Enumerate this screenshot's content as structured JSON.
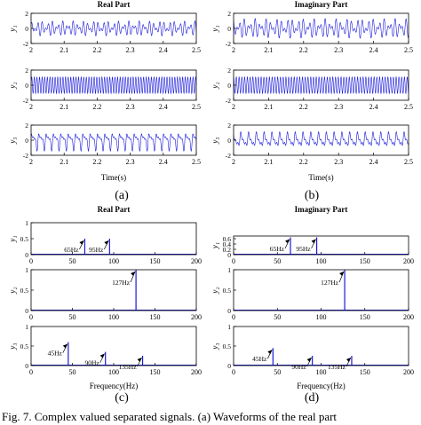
{
  "colors": {
    "trace": "#1a1adb",
    "axis": "#000000",
    "stem": "#1a1adb"
  },
  "subfig_labels": [
    "(a)",
    "(b)",
    "(c)",
    "(d)"
  ],
  "caption": "Fig. 7.   Complex valued separated signals. (a) Waveforms of the real part",
  "chart_data": [
    {
      "id": "a",
      "type": "line",
      "title": "Real Part",
      "xlabel": "Time(s)",
      "x_ticks": [
        "2",
        "2.1",
        "2.2",
        "2.3",
        "2.4",
        "2.5"
      ],
      "xlim": [
        2,
        2.5
      ],
      "panels": [
        {
          "ylabel": "y₁",
          "ylim": [
            -2,
            2
          ],
          "y_ticks": [
            "2",
            "0",
            "-2"
          ],
          "freqs_hz": [
            65,
            95
          ],
          "amps": [
            0.5,
            0.5
          ]
        },
        {
          "ylabel": "y₂",
          "ylim": [
            -2,
            2
          ],
          "y_ticks": [
            "2",
            "0",
            "-2"
          ],
          "freqs_hz": [
            127
          ],
          "amps": [
            1.1
          ]
        },
        {
          "ylabel": "y₃",
          "ylim": [
            -2,
            2
          ],
          "y_ticks": [
            "2",
            "0",
            "-2"
          ],
          "freqs_hz": [
            45,
            90,
            135
          ],
          "amps": [
            0.7,
            0.5,
            0.3
          ]
        }
      ]
    },
    {
      "id": "b",
      "type": "line",
      "title": "Imaginary Part",
      "xlabel": "Time(s)",
      "x_ticks": [
        "2",
        "2.1",
        "2.2",
        "2.3",
        "2.4",
        "2.5"
      ],
      "xlim": [
        2,
        2.5
      ],
      "panels": [
        {
          "ylabel": "y₁",
          "ylim": [
            -2,
            2
          ],
          "y_ticks": [
            "2",
            "0",
            "-2"
          ],
          "freqs_hz": [
            65,
            95
          ],
          "amps": [
            0.65,
            0.65
          ]
        },
        {
          "ylabel": "y₂",
          "ylim": [
            -2,
            2
          ],
          "y_ticks": [
            "2",
            "0",
            "-2"
          ],
          "freqs_hz": [
            127
          ],
          "amps": [
            1.1
          ]
        },
        {
          "ylabel": "y₃",
          "ylim": [
            -2,
            2
          ],
          "y_ticks": [
            "2",
            "0",
            "-2"
          ],
          "freqs_hz": [
            45,
            90,
            135
          ],
          "amps": [
            0.6,
            0.3,
            0.3
          ]
        }
      ]
    },
    {
      "id": "c",
      "type": "bar",
      "title": "Real Part",
      "xlabel": "Frequency(Hz)",
      "x_ticks": [
        "0",
        "50",
        "100",
        "150",
        "200"
      ],
      "xlim": [
        0,
        200
      ],
      "panels": [
        {
          "ylabel": "y₁",
          "ylim": [
            0,
            1
          ],
          "y_ticks": [
            "1",
            "0.5",
            "0"
          ],
          "peaks": [
            {
              "x": 65,
              "y": 0.5,
              "label": "65Hz"
            },
            {
              "x": 95,
              "y": 0.5,
              "label": "95Hz"
            }
          ]
        },
        {
          "ylabel": "y₂",
          "ylim": [
            0,
            1
          ],
          "y_ticks": [
            "1",
            "0.5",
            "0"
          ],
          "peaks": [
            {
              "x": 127,
              "y": 1.0,
              "label": "127Hz"
            }
          ]
        },
        {
          "ylabel": "y₃",
          "ylim": [
            0,
            1
          ],
          "y_ticks": [
            "1",
            "0.5",
            "0"
          ],
          "peaks": [
            {
              "x": 45,
              "y": 0.6,
              "label": "45Hz"
            },
            {
              "x": 90,
              "y": 0.35,
              "label": "90Hz"
            },
            {
              "x": 135,
              "y": 0.25,
              "label": "135Hz"
            }
          ]
        }
      ]
    },
    {
      "id": "d",
      "type": "bar",
      "title": "Imaginary Part",
      "xlabel": "Frequency(Hz)",
      "x_ticks": [
        "0",
        "50",
        "100",
        "150",
        "200"
      ],
      "xlim": [
        0,
        200
      ],
      "panels": [
        {
          "ylabel": "y₁",
          "ylim": [
            0,
            0.7
          ],
          "y_ticks": [
            "0.6",
            "0.4",
            "0.2",
            "0"
          ],
          "peaks": [
            {
              "x": 65,
              "y": 0.65,
              "label": "65Hz"
            },
            {
              "x": 95,
              "y": 0.65,
              "label": "95Hz"
            }
          ]
        },
        {
          "ylabel": "y₂",
          "ylim": [
            0,
            1
          ],
          "y_ticks": [
            "1",
            "0.5",
            "0"
          ],
          "peaks": [
            {
              "x": 127,
              "y": 1.0,
              "label": "127Hz"
            }
          ]
        },
        {
          "ylabel": "y₃",
          "ylim": [
            0,
            1
          ],
          "y_ticks": [
            "1",
            "0.5",
            "0"
          ],
          "peaks": [
            {
              "x": 45,
              "y": 0.45,
              "label": "45Hz"
            },
            {
              "x": 90,
              "y": 0.25,
              "label": "90Hz"
            },
            {
              "x": 135,
              "y": 0.25,
              "label": "135Hz"
            }
          ]
        }
      ]
    }
  ]
}
